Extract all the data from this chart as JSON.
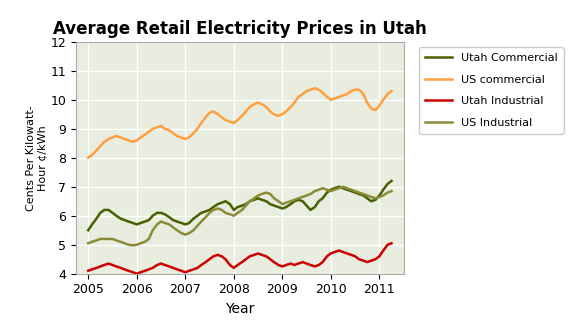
{
  "title": "Average Retail Electricity Prices in Utah",
  "xlabel": "Year",
  "ylabel": "Cents Per Kilowatt-\nHour ¢/kWh",
  "ylim": [
    4,
    12
  ],
  "xlim": [
    2004.75,
    2011.5
  ],
  "yticks": [
    4,
    5,
    6,
    7,
    8,
    9,
    10,
    11,
    12
  ],
  "xticks": [
    2005,
    2006,
    2007,
    2008,
    2009,
    2010,
    2011
  ],
  "background_color": "#e8ede0",
  "legend": [
    "Utah Commercial",
    "US commercial",
    "Utah Industrial",
    "US Industrial"
  ],
  "colors": {
    "utah_commercial": "#4a6000",
    "us_commercial": "#ffa040",
    "utah_industrial": "#cc0000",
    "us_industrial": "#8b8b3a"
  },
  "utah_commercial": {
    "x": [
      2005.0,
      2005.08,
      2005.17,
      2005.25,
      2005.33,
      2005.42,
      2005.5,
      2005.58,
      2005.67,
      2005.75,
      2005.83,
      2005.92,
      2006.0,
      2006.08,
      2006.17,
      2006.25,
      2006.33,
      2006.42,
      2006.5,
      2006.58,
      2006.67,
      2006.75,
      2006.83,
      2006.92,
      2007.0,
      2007.08,
      2007.17,
      2007.25,
      2007.33,
      2007.42,
      2007.5,
      2007.58,
      2007.67,
      2007.75,
      2007.83,
      2007.92,
      2008.0,
      2008.08,
      2008.17,
      2008.25,
      2008.33,
      2008.42,
      2008.5,
      2008.58,
      2008.67,
      2008.75,
      2008.83,
      2008.92,
      2009.0,
      2009.08,
      2009.17,
      2009.25,
      2009.33,
      2009.42,
      2009.5,
      2009.58,
      2009.67,
      2009.75,
      2009.83,
      2009.92,
      2010.0,
      2010.08,
      2010.17,
      2010.25,
      2010.33,
      2010.42,
      2010.5,
      2010.58,
      2010.67,
      2010.75,
      2010.83,
      2010.92,
      2011.0,
      2011.08,
      2011.17,
      2011.25
    ],
    "y": [
      5.5,
      5.7,
      5.9,
      6.1,
      6.2,
      6.2,
      6.1,
      6.0,
      5.9,
      5.85,
      5.8,
      5.75,
      5.7,
      5.75,
      5.8,
      5.85,
      6.0,
      6.1,
      6.1,
      6.05,
      5.95,
      5.85,
      5.8,
      5.75,
      5.7,
      5.75,
      5.9,
      6.0,
      6.1,
      6.15,
      6.2,
      6.3,
      6.4,
      6.45,
      6.5,
      6.4,
      6.2,
      6.3,
      6.35,
      6.4,
      6.5,
      6.55,
      6.6,
      6.55,
      6.5,
      6.4,
      6.35,
      6.3,
      6.25,
      6.3,
      6.4,
      6.5,
      6.55,
      6.5,
      6.35,
      6.2,
      6.3,
      6.5,
      6.6,
      6.8,
      6.9,
      6.95,
      7.0,
      6.95,
      6.9,
      6.85,
      6.8,
      6.75,
      6.7,
      6.6,
      6.5,
      6.55,
      6.7,
      6.9,
      7.1,
      7.2
    ]
  },
  "us_commercial": {
    "x": [
      2005.0,
      2005.08,
      2005.17,
      2005.25,
      2005.33,
      2005.42,
      2005.5,
      2005.58,
      2005.67,
      2005.75,
      2005.83,
      2005.92,
      2006.0,
      2006.08,
      2006.17,
      2006.25,
      2006.33,
      2006.42,
      2006.5,
      2006.58,
      2006.67,
      2006.75,
      2006.83,
      2006.92,
      2007.0,
      2007.08,
      2007.17,
      2007.25,
      2007.33,
      2007.42,
      2007.5,
      2007.58,
      2007.67,
      2007.75,
      2007.83,
      2007.92,
      2008.0,
      2008.08,
      2008.17,
      2008.25,
      2008.33,
      2008.42,
      2008.5,
      2008.58,
      2008.67,
      2008.75,
      2008.83,
      2008.92,
      2009.0,
      2009.08,
      2009.17,
      2009.25,
      2009.33,
      2009.42,
      2009.5,
      2009.58,
      2009.67,
      2009.75,
      2009.83,
      2009.92,
      2010.0,
      2010.08,
      2010.17,
      2010.25,
      2010.33,
      2010.42,
      2010.5,
      2010.58,
      2010.67,
      2010.75,
      2010.83,
      2010.92,
      2011.0,
      2011.08,
      2011.17,
      2011.25
    ],
    "y": [
      8.0,
      8.1,
      8.25,
      8.4,
      8.55,
      8.65,
      8.7,
      8.75,
      8.7,
      8.65,
      8.6,
      8.55,
      8.6,
      8.7,
      8.8,
      8.9,
      9.0,
      9.05,
      9.1,
      9.0,
      8.95,
      8.85,
      8.75,
      8.7,
      8.65,
      8.7,
      8.85,
      9.0,
      9.2,
      9.4,
      9.55,
      9.6,
      9.5,
      9.4,
      9.3,
      9.25,
      9.2,
      9.3,
      9.45,
      9.6,
      9.75,
      9.85,
      9.9,
      9.85,
      9.75,
      9.6,
      9.5,
      9.45,
      9.5,
      9.6,
      9.75,
      9.9,
      10.1,
      10.2,
      10.3,
      10.35,
      10.4,
      10.35,
      10.25,
      10.1,
      10.0,
      10.05,
      10.1,
      10.15,
      10.2,
      10.3,
      10.35,
      10.35,
      10.2,
      9.9,
      9.7,
      9.65,
      9.8,
      10.0,
      10.2,
      10.3
    ]
  },
  "utah_industrial": {
    "x": [
      2005.0,
      2005.08,
      2005.17,
      2005.25,
      2005.33,
      2005.42,
      2005.5,
      2005.58,
      2005.67,
      2005.75,
      2005.83,
      2005.92,
      2006.0,
      2006.08,
      2006.17,
      2006.25,
      2006.33,
      2006.42,
      2006.5,
      2006.58,
      2006.67,
      2006.75,
      2006.83,
      2006.92,
      2007.0,
      2007.08,
      2007.17,
      2007.25,
      2007.33,
      2007.42,
      2007.5,
      2007.58,
      2007.67,
      2007.75,
      2007.83,
      2007.92,
      2008.0,
      2008.08,
      2008.17,
      2008.25,
      2008.33,
      2008.42,
      2008.5,
      2008.58,
      2008.67,
      2008.75,
      2008.83,
      2008.92,
      2009.0,
      2009.08,
      2009.17,
      2009.25,
      2009.33,
      2009.42,
      2009.5,
      2009.58,
      2009.67,
      2009.75,
      2009.83,
      2009.92,
      2010.0,
      2010.08,
      2010.17,
      2010.25,
      2010.33,
      2010.42,
      2010.5,
      2010.58,
      2010.67,
      2010.75,
      2010.83,
      2010.92,
      2011.0,
      2011.08,
      2011.17,
      2011.25
    ],
    "y": [
      4.1,
      4.15,
      4.2,
      4.25,
      4.3,
      4.35,
      4.3,
      4.25,
      4.2,
      4.15,
      4.1,
      4.05,
      4.0,
      4.05,
      4.1,
      4.15,
      4.2,
      4.3,
      4.35,
      4.3,
      4.25,
      4.2,
      4.15,
      4.1,
      4.05,
      4.1,
      4.15,
      4.2,
      4.3,
      4.4,
      4.5,
      4.6,
      4.65,
      4.6,
      4.5,
      4.3,
      4.2,
      4.3,
      4.4,
      4.5,
      4.6,
      4.65,
      4.7,
      4.65,
      4.6,
      4.5,
      4.4,
      4.3,
      4.25,
      4.3,
      4.35,
      4.3,
      4.35,
      4.4,
      4.35,
      4.3,
      4.25,
      4.3,
      4.4,
      4.6,
      4.7,
      4.75,
      4.8,
      4.75,
      4.7,
      4.65,
      4.6,
      4.5,
      4.45,
      4.4,
      4.45,
      4.5,
      4.6,
      4.8,
      5.0,
      5.05
    ]
  },
  "us_industrial": {
    "x": [
      2005.0,
      2005.08,
      2005.17,
      2005.25,
      2005.33,
      2005.42,
      2005.5,
      2005.58,
      2005.67,
      2005.75,
      2005.83,
      2005.92,
      2006.0,
      2006.08,
      2006.17,
      2006.25,
      2006.33,
      2006.42,
      2006.5,
      2006.58,
      2006.67,
      2006.75,
      2006.83,
      2006.92,
      2007.0,
      2007.08,
      2007.17,
      2007.25,
      2007.33,
      2007.42,
      2007.5,
      2007.58,
      2007.67,
      2007.75,
      2007.83,
      2007.92,
      2008.0,
      2008.08,
      2008.17,
      2008.25,
      2008.33,
      2008.42,
      2008.5,
      2008.58,
      2008.67,
      2008.75,
      2008.83,
      2008.92,
      2009.0,
      2009.08,
      2009.17,
      2009.25,
      2009.33,
      2009.42,
      2009.5,
      2009.58,
      2009.67,
      2009.75,
      2009.83,
      2009.92,
      2010.0,
      2010.08,
      2010.17,
      2010.25,
      2010.33,
      2010.42,
      2010.5,
      2010.58,
      2010.67,
      2010.75,
      2010.83,
      2010.92,
      2011.0,
      2011.08,
      2011.17,
      2011.25
    ],
    "y": [
      5.05,
      5.1,
      5.15,
      5.2,
      5.2,
      5.2,
      5.2,
      5.15,
      5.1,
      5.05,
      5.0,
      4.98,
      5.0,
      5.05,
      5.1,
      5.2,
      5.5,
      5.7,
      5.8,
      5.75,
      5.7,
      5.6,
      5.5,
      5.4,
      5.35,
      5.4,
      5.5,
      5.65,
      5.8,
      5.95,
      6.1,
      6.2,
      6.25,
      6.2,
      6.1,
      6.05,
      6.0,
      6.1,
      6.2,
      6.35,
      6.5,
      6.6,
      6.7,
      6.75,
      6.8,
      6.75,
      6.6,
      6.5,
      6.4,
      6.45,
      6.5,
      6.55,
      6.6,
      6.65,
      6.7,
      6.75,
      6.85,
      6.9,
      6.95,
      6.9,
      6.85,
      6.9,
      6.95,
      7.0,
      6.95,
      6.9,
      6.85,
      6.8,
      6.75,
      6.7,
      6.65,
      6.6,
      6.65,
      6.7,
      6.8,
      6.85
    ]
  },
  "figsize": [
    5.85,
    3.22
  ],
  "dpi": 100,
  "title_fontsize": 12,
  "axis_fontsize": 9,
  "ylabel_fontsize": 8,
  "legend_fontsize": 8,
  "linewidth": 1.8
}
